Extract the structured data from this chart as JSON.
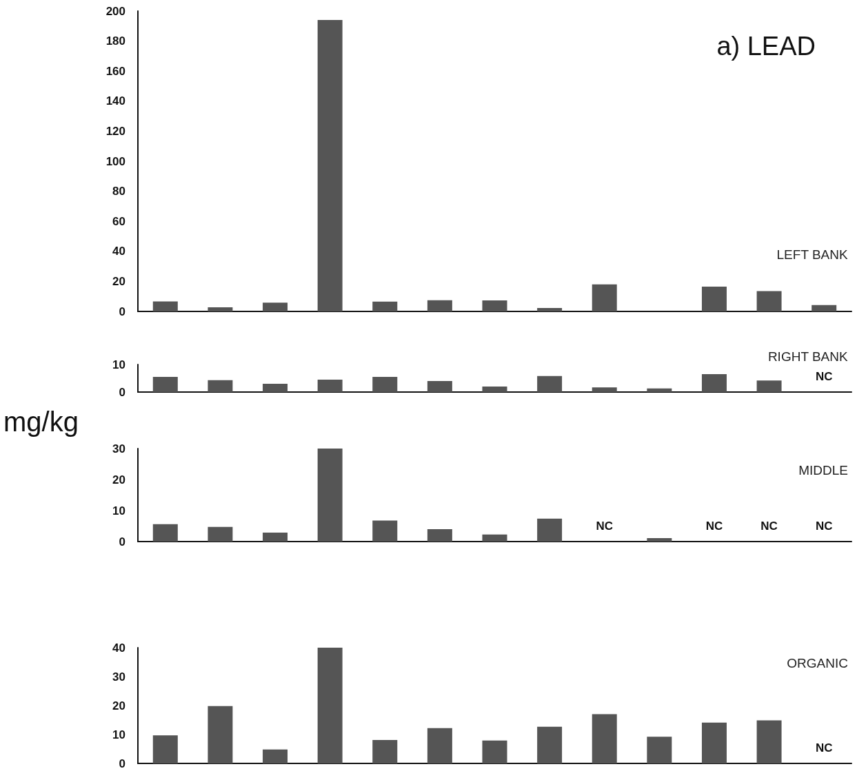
{
  "chart_data": [
    {
      "type": "bar",
      "title": "LEFT BANK",
      "annotations": [
        "a) LEAD"
      ],
      "categories": [
        null,
        null,
        null,
        null,
        null,
        null,
        null,
        null,
        null,
        null,
        null,
        null,
        null
      ],
      "values": [
        6.7,
        2.8,
        5.8,
        194,
        6.5,
        7.5,
        7.3,
        2.3,
        18,
        null,
        16.5,
        13.5,
        4.2
      ],
      "color": "#555555",
      "ylim": [
        0,
        200
      ],
      "yticks": [
        0,
        20,
        40,
        60,
        80,
        100,
        120,
        140,
        160,
        180,
        200
      ],
      "grid": false,
      "tick_labels": "y"
    },
    {
      "type": "bar",
      "title": "RIGHT BANK",
      "categories": [
        null,
        null,
        null,
        null,
        null,
        null,
        null,
        null,
        null,
        null,
        null,
        null,
        null
      ],
      "values": [
        5.5,
        4.3,
        3.0,
        4.5,
        5.5,
        4.0,
        2.0,
        5.8,
        1.7,
        1.3,
        6.5,
        4.2,
        null
      ],
      "value_labels": [
        null,
        null,
        null,
        null,
        null,
        null,
        null,
        null,
        null,
        null,
        null,
        null,
        "NC"
      ],
      "color": "#555555",
      "ylim": [
        0,
        10
      ],
      "yticks": [
        0,
        10
      ],
      "grid": false,
      "tick_labels": "y"
    },
    {
      "type": "bar",
      "title": "MIDDLE",
      "ylabel": "mg/kg",
      "categories": [
        null,
        null,
        null,
        null,
        null,
        null,
        null,
        null,
        null,
        null,
        null,
        null,
        null
      ],
      "values": [
        5.6,
        4.7,
        2.9,
        30,
        6.8,
        4.0,
        2.3,
        7.4,
        null,
        1.1,
        null,
        null,
        null
      ],
      "value_labels": [
        null,
        null,
        null,
        null,
        null,
        null,
        null,
        null,
        "NC",
        null,
        "NC",
        "NC",
        "NC"
      ],
      "color": "#555555",
      "ylim": [
        0,
        30
      ],
      "yticks": [
        0,
        10,
        20,
        30
      ],
      "grid": false,
      "tick_labels": "y"
    },
    {
      "type": "bar",
      "title": "ORGANIC",
      "categories": [
        null,
        null,
        null,
        null,
        null,
        null,
        null,
        null,
        null,
        null,
        null,
        null,
        null
      ],
      "values": [
        9.7,
        19.8,
        4.8,
        40,
        8.1,
        12.2,
        7.9,
        12.7,
        17,
        9.2,
        14.1,
        14.9,
        null
      ],
      "value_labels": [
        null,
        null,
        null,
        null,
        null,
        null,
        null,
        null,
        null,
        null,
        null,
        null,
        "NC"
      ],
      "color": "#555555",
      "ylim": [
        0,
        40
      ],
      "yticks": [
        0,
        10,
        20,
        30,
        40
      ],
      "grid": false,
      "tick_labels": "y"
    }
  ]
}
